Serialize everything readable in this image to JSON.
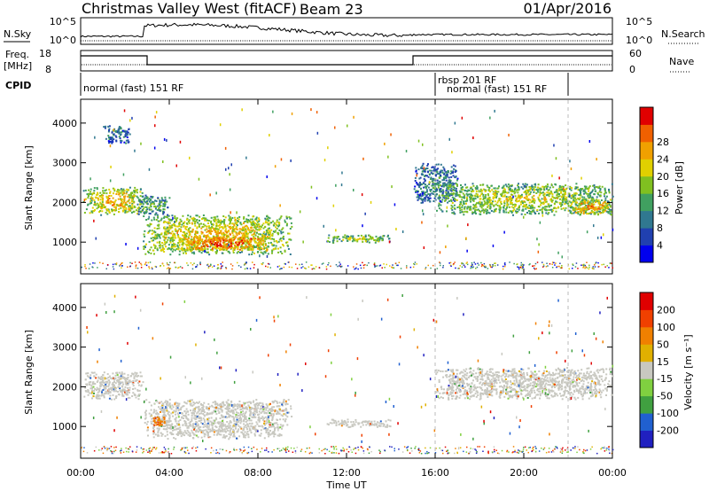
{
  "header": {
    "title": "Christmas Valley West (fitACF)",
    "beam": "Beam 23",
    "date": "01/Apr/2016"
  },
  "sky_panel": {
    "left_label": "N.Sky",
    "right_label": "N.Search",
    "left_ticks": [
      "10^5",
      "10^0"
    ],
    "right_ticks": [
      "10^5",
      "10^0"
    ]
  },
  "freq_panel": {
    "left_label_line1": "Freq.",
    "left_label_line2": "[MHz]",
    "right_label": "Nave",
    "left_ticks": [
      "18",
      "8"
    ],
    "right_ticks": [
      "60",
      "0"
    ]
  },
  "cpid": {
    "label": "CPID",
    "segments": [
      {
        "start_hour": 0,
        "end_hour": 16,
        "name": "normal (fast) 151 RF"
      },
      {
        "start_hour": 16,
        "end_hour": 22,
        "name": "rbsp 201 RF"
      },
      {
        "start_hour": 16.2,
        "end_hour": 22,
        "name": "normal (fast) 151 RF"
      }
    ]
  },
  "chart_data": [
    {
      "type": "heatmap",
      "name": "power",
      "ylabel": "Slant Range [km]",
      "ylim": [
        200,
        4600
      ],
      "yticks": [
        "1000",
        "2000",
        "3000",
        "4000"
      ],
      "colorbar_label": "Power [dB]",
      "colorbar_ticks": [
        "4",
        "8",
        "12",
        "16",
        "20",
        "24",
        "28"
      ],
      "colorbar_colors": [
        "#0000ee",
        "#2040b0",
        "#307890",
        "#40a060",
        "#80c020",
        "#e0d000",
        "#f0a000",
        "#f06000",
        "#e00000"
      ],
      "regions": [
        {
          "t0": 0.1,
          "t1": 2.8,
          "r0": 1700,
          "r1": 2400,
          "level": 0.72
        },
        {
          "t0": 2.8,
          "t1": 9.5,
          "r0": 700,
          "r1": 1700,
          "level": 0.7
        },
        {
          "t0": 4.5,
          "t1": 8.5,
          "r0": 800,
          "r1": 1200,
          "level": 0.95
        },
        {
          "t0": 2.5,
          "t1": 4.0,
          "r0": 1700,
          "r1": 2200,
          "level": 0.45
        },
        {
          "t0": 1.0,
          "t1": 2.2,
          "r0": 3500,
          "r1": 3950,
          "level": 0.3
        },
        {
          "t0": 11.0,
          "t1": 14.0,
          "r0": 1000,
          "r1": 1200,
          "level": 0.55
        },
        {
          "t0": 15.0,
          "t1": 17.0,
          "r0": 2000,
          "r1": 3000,
          "level": 0.35
        },
        {
          "t0": 16.0,
          "t1": 24.0,
          "r0": 1700,
          "r1": 2500,
          "level": 0.6
        },
        {
          "t0": 22.0,
          "t1": 24.0,
          "r0": 1700,
          "r1": 2100,
          "level": 0.8
        }
      ]
    },
    {
      "type": "heatmap",
      "name": "velocity",
      "xlabel": "Time UT",
      "ylabel": "Slant Range [km]",
      "xlim": [
        0,
        24
      ],
      "ylim": [
        200,
        4600
      ],
      "xticks": [
        "00:00",
        "04:00",
        "08:00",
        "12:00",
        "16:00",
        "20:00",
        "00:00"
      ],
      "yticks": [
        "1000",
        "2000",
        "3000",
        "4000"
      ],
      "colorbar_label": "Velocity [m s⁻¹]",
      "colorbar_ticks": [
        "200",
        "100",
        "50",
        "15",
        "-15",
        "-50",
        "-100",
        "-200"
      ],
      "colorbar_colors": [
        "#2020c0",
        "#2060d0",
        "#40a040",
        "#80d040",
        "#c8c8c0",
        "#e0b000",
        "#f08000",
        "#f04000",
        "#e00000"
      ],
      "regions": [
        {
          "t0": 0.1,
          "t1": 2.8,
          "r0": 1700,
          "r1": 2400,
          "level": 0.5
        },
        {
          "t0": 2.8,
          "t1": 9.5,
          "r0": 700,
          "r1": 1700,
          "level": 0.5
        },
        {
          "t0": 16.0,
          "t1": 24.0,
          "r0": 1700,
          "r1": 2500,
          "level": 0.5
        },
        {
          "t0": 11.0,
          "t1": 14.0,
          "r0": 1000,
          "r1": 1200,
          "level": 0.5
        },
        {
          "t0": 3.2,
          "t1": 3.8,
          "r0": 1000,
          "r1": 1300,
          "level": 0.75
        }
      ]
    }
  ]
}
